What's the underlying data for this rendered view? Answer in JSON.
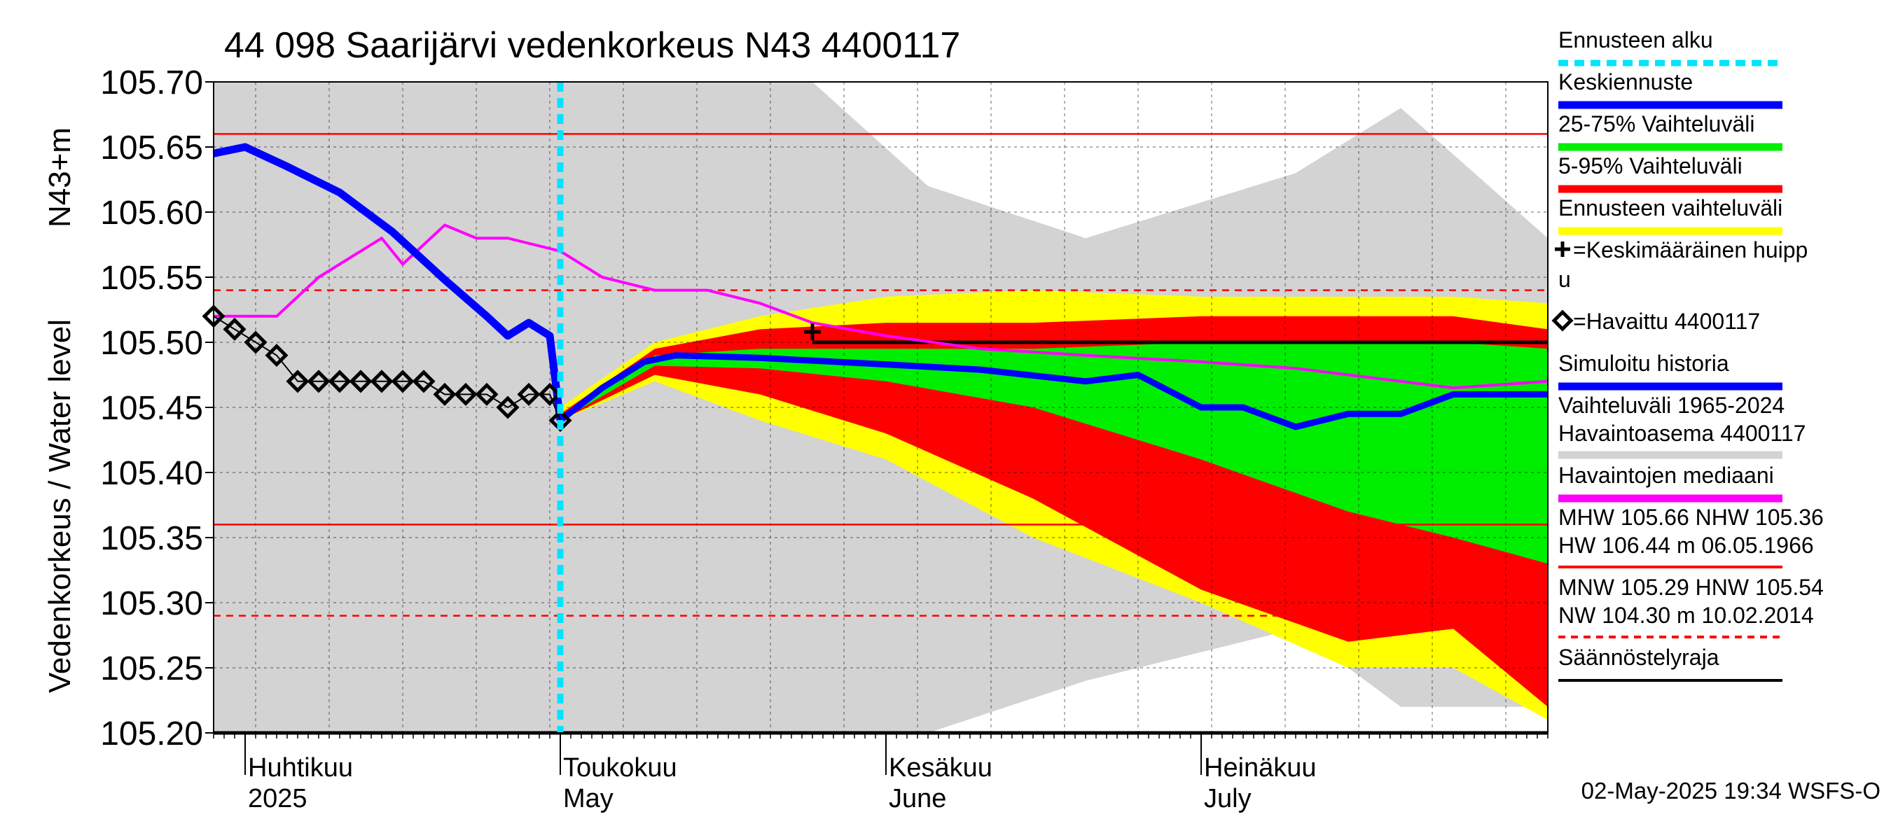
{
  "chart_data": {
    "type": "area",
    "title": "44 098 Saarijärvi vedenkorkeus N43 4400117",
    "ylabel_fi": "Vedenkorkeus / Water level",
    "ylabel_unit": "N43+m",
    "ylim": [
      105.2,
      105.7
    ],
    "yticks": [
      "105.70",
      "105.65",
      "105.60",
      "105.55",
      "105.50",
      "105.45",
      "105.40",
      "105.35",
      "105.30",
      "105.25",
      "105.20"
    ],
    "x_start": "2025-03-29",
    "x_end": "2025-08-03",
    "forecast_start": "2025-05-01",
    "month_labels": [
      {
        "date": "2025-04-01",
        "fi": "Huhtikuu",
        "en": "2025"
      },
      {
        "date": "2025-05-01",
        "fi": "Toukokuu",
        "en": "May"
      },
      {
        "date": "2025-06-01",
        "fi": "Kesäkuu",
        "en": "June"
      },
      {
        "date": "2025-07-01",
        "fi": "Heinäkuu",
        "en": "July"
      }
    ],
    "reference_lines": {
      "MHW": 105.66,
      "NHW": 105.36,
      "MNW": 105.29,
      "HNW": 105.54,
      "regulation_limit_low": 105.2,
      "regulation_limit_high": 105.5
    },
    "series": [
      {
        "name": "Havaittu 4400117",
        "color": "#000000",
        "x": [
          "2025-03-29",
          "2025-03-31",
          "2025-04-02",
          "2025-04-04",
          "2025-04-06",
          "2025-04-08",
          "2025-04-10",
          "2025-04-12",
          "2025-04-14",
          "2025-04-16",
          "2025-04-18",
          "2025-04-20",
          "2025-04-22",
          "2025-04-24",
          "2025-04-26",
          "2025-04-28",
          "2025-04-30",
          "2025-05-01"
        ],
        "y": [
          105.52,
          105.51,
          105.5,
          105.49,
          105.47,
          105.47,
          105.47,
          105.47,
          105.47,
          105.47,
          105.47,
          105.46,
          105.46,
          105.46,
          105.45,
          105.46,
          105.46,
          105.44
        ]
      },
      {
        "name": "Simuloitu historia",
        "color": "#0000ff",
        "x": [
          "2025-03-29",
          "2025-04-01",
          "2025-04-05",
          "2025-04-10",
          "2025-04-15",
          "2025-04-20",
          "2025-04-24",
          "2025-04-26",
          "2025-04-28",
          "2025-04-30",
          "2025-05-01"
        ],
        "y": [
          105.645,
          105.65,
          105.635,
          105.615,
          105.585,
          105.548,
          105.52,
          105.505,
          105.515,
          105.505,
          105.44
        ]
      },
      {
        "name": "Keskiennuste",
        "color": "#0000ff",
        "x": [
          "2025-05-01",
          "2025-05-05",
          "2025-05-09",
          "2025-05-12",
          "2025-05-20",
          "2025-06-01",
          "2025-06-10",
          "2025-06-20",
          "2025-06-25",
          "2025-07-01",
          "2025-07-05",
          "2025-07-10",
          "2025-07-15",
          "2025-07-20",
          "2025-07-25",
          "2025-08-03"
        ],
        "y": [
          105.44,
          105.465,
          105.485,
          105.49,
          105.488,
          105.483,
          105.479,
          105.47,
          105.475,
          105.45,
          105.45,
          105.435,
          105.445,
          105.445,
          105.46,
          105.46
        ]
      },
      {
        "name": "Havaintojen mediaani",
        "color": "#ff00ff",
        "x": [
          "2025-03-29",
          "2025-04-04",
          "2025-04-08",
          "2025-04-12",
          "2025-04-14",
          "2025-04-16",
          "2025-04-20",
          "2025-04-23",
          "2025-04-26",
          "2025-05-01",
          "2025-05-05",
          "2025-05-10",
          "2025-05-15",
          "2025-05-20",
          "2025-05-25",
          "2025-06-01",
          "2025-06-10",
          "2025-06-20",
          "2025-07-01",
          "2025-07-10",
          "2025-07-20",
          "2025-07-25",
          "2025-08-03"
        ],
        "y": [
          105.52,
          105.52,
          105.55,
          105.57,
          105.58,
          105.56,
          105.59,
          105.58,
          105.58,
          105.57,
          105.55,
          105.54,
          105.54,
          105.53,
          105.515,
          105.505,
          105.495,
          105.49,
          105.485,
          105.48,
          105.47,
          105.465,
          105.47
        ]
      },
      {
        "name": "Keskimääräinen huippu",
        "type": "marker",
        "color": "#000000",
        "x": [
          "2025-05-25"
        ],
        "y": [
          105.508
        ]
      }
    ],
    "bands": [
      {
        "name": "Ennusteen vaihteluväli",
        "color": "#ffff00",
        "x": [
          "2025-05-01",
          "2025-05-10",
          "2025-05-20",
          "2025-06-01",
          "2025-06-15",
          "2025-07-01",
          "2025-07-15",
          "2025-07-25",
          "2025-08-03"
        ],
        "high": [
          105.45,
          105.5,
          105.52,
          105.535,
          105.54,
          105.535,
          105.535,
          105.535,
          105.53
        ],
        "low": [
          105.44,
          105.47,
          105.44,
          105.41,
          105.35,
          105.3,
          105.25,
          105.25,
          105.21
        ]
      },
      {
        "name": "5-95% Vaihteluväli",
        "color": "#ff0000",
        "x": [
          "2025-05-01",
          "2025-05-10",
          "2025-05-20",
          "2025-06-01",
          "2025-06-15",
          "2025-07-01",
          "2025-07-15",
          "2025-07-25",
          "2025-08-03"
        ],
        "high": [
          105.445,
          105.495,
          105.51,
          105.515,
          105.515,
          105.52,
          105.52,
          105.52,
          105.51
        ],
        "low": [
          105.44,
          105.475,
          105.46,
          105.43,
          105.38,
          105.31,
          105.27,
          105.28,
          105.22
        ]
      },
      {
        "name": "25-75% Vaihteluväli",
        "color": "#00ee00",
        "x": [
          "2025-05-01",
          "2025-05-10",
          "2025-05-20",
          "2025-06-01",
          "2025-06-15",
          "2025-07-01",
          "2025-07-15",
          "2025-07-25",
          "2025-08-03"
        ],
        "high": [
          105.442,
          105.49,
          105.495,
          105.495,
          105.495,
          105.5,
          105.5,
          105.5,
          105.495
        ],
        "low": [
          105.44,
          105.482,
          105.48,
          105.47,
          105.45,
          105.41,
          105.37,
          105.35,
          105.33
        ]
      },
      {
        "name": "Vaihteluväli 1965-2024",
        "color": "#d3d3d3",
        "x": [
          "2025-03-29",
          "2025-05-01",
          "2025-05-25",
          "2025-06-05",
          "2025-06-20",
          "2025-07-10",
          "2025-07-20",
          "2025-08-03"
        ],
        "high": [
          105.7,
          105.7,
          105.7,
          105.62,
          105.58,
          105.63,
          105.68,
          105.58
        ],
        "low": [
          105.2,
          105.2,
          105.2,
          105.2,
          105.24,
          105.28,
          105.22,
          105.22
        ]
      }
    ],
    "legend": {
      "position": "right",
      "items": [
        {
          "label": "Ennusteen alku",
          "color": "#00e5ff",
          "style": "dotted"
        },
        {
          "label": "Keskiennuste",
          "color": "#0000ff",
          "style": "line"
        },
        {
          "label": "25-75% Vaihteluväli",
          "color": "#00ee00",
          "style": "line"
        },
        {
          "label": "5-95% Vaihteluväli",
          "color": "#ff0000",
          "style": "line"
        },
        {
          "label": "Ennusteen vaihteluväli",
          "color": "#ffff00",
          "style": "line"
        },
        {
          "label": "=Keskimääräinen huipp",
          "label2": "u",
          "color": "#000000",
          "style": "plus"
        },
        {
          "label": "=Havaittu 4400117",
          "color": "#000000",
          "style": "diamond"
        },
        {
          "label": "Simuloitu historia",
          "color": "#0000ff",
          "style": "line"
        },
        {
          "label": "Vaihteluväli 1965-2024",
          "label2": " Havaintoasema 4400117",
          "color": "#d3d3d3",
          "style": "line"
        },
        {
          "label": "Havaintojen mediaani",
          "color": "#ff00ff",
          "style": "line"
        },
        {
          "label": "MHW 105.66 NHW 105.36",
          "label2": "HW 106.44 m 06.05.1966",
          "color": "#ff0000",
          "style": "line"
        },
        {
          "label": "MNW 105.29 HNW 105.54",
          "label2": "NW 104.30 m 10.02.2014",
          "color": "#ff0000",
          "style": "dashed"
        },
        {
          "label": "Säännöstelyraja",
          "color": "#000000",
          "style": "line"
        }
      ]
    },
    "grid": true,
    "footer": "02-May-2025 19:34 WSFS-O"
  }
}
